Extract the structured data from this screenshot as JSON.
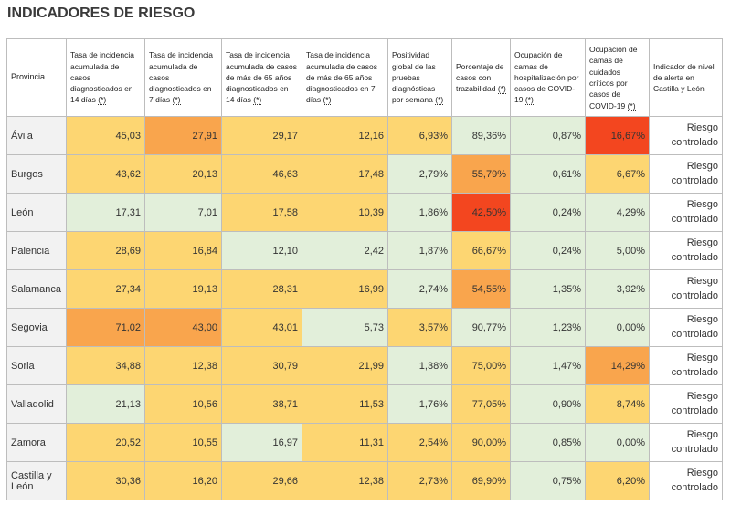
{
  "title": "INDICADORES DE RIESGO",
  "table": {
    "headers": [
      {
        "text": "Provincia"
      },
      {
        "text": "Tasa de incidencia acumulada de casos diagnosticados en 14 días",
        "note": "(*)"
      },
      {
        "text": "Tasa de incidencia acumulada de casos diagnosticados en 7 días",
        "note": "(*)"
      },
      {
        "text": "Tasa de incidencia acumulada de casos de más de 65 años diagnosticados en 14 días",
        "note": "(*)"
      },
      {
        "text": "Tasa de incidencia acumulada de casos de más de 65 años diagnosticados en 7 días",
        "note": "(*)"
      },
      {
        "text": "Positividad global de las pruebas diagnósticas por semana",
        "note": "(*)"
      },
      {
        "text": "Porcentaje de casos con trazabilidad",
        "note": "(*)"
      },
      {
        "text": "Ocupación de camas de hospitalización por casos de COVID-19",
        "note": "(*)"
      },
      {
        "text": "Ocupación de camas de cuidados críticos por casos de COVID-19",
        "note": "(*)"
      },
      {
        "text": "Indicador de nivel de alerta en Castilla y León"
      }
    ],
    "rows": [
      {
        "provincia": "Ávila",
        "values": [
          "45,03",
          "27,91",
          "29,17",
          "12,16",
          "6,93%",
          "89,36%",
          "0,87%",
          "16,67%"
        ],
        "colors": [
          "#fdd672",
          "#f9a54d",
          "#fdd672",
          "#fdd672",
          "#fdd672",
          "#e2efda",
          "#e2efda",
          "#f3461f"
        ],
        "indicator": "Riesgo controlado"
      },
      {
        "provincia": "Burgos",
        "values": [
          "43,62",
          "20,13",
          "46,63",
          "17,48",
          "2,79%",
          "55,79%",
          "0,61%",
          "6,67%"
        ],
        "colors": [
          "#fdd672",
          "#fdd672",
          "#fdd672",
          "#fdd672",
          "#e2efda",
          "#f9a54d",
          "#e2efda",
          "#fdd672"
        ],
        "indicator": "Riesgo controlado"
      },
      {
        "provincia": "León",
        "values": [
          "17,31",
          "7,01",
          "17,58",
          "10,39",
          "1,86%",
          "42,50%",
          "0,24%",
          "4,29%"
        ],
        "colors": [
          "#e2efda",
          "#e2efda",
          "#fdd672",
          "#fdd672",
          "#e2efda",
          "#f3461f",
          "#e2efda",
          "#e2efda"
        ],
        "indicator": "Riesgo controlado"
      },
      {
        "provincia": "Palencia",
        "values": [
          "28,69",
          "16,84",
          "12,10",
          "2,42",
          "1,87%",
          "66,67%",
          "0,24%",
          "5,00%"
        ],
        "colors": [
          "#fdd672",
          "#fdd672",
          "#e2efda",
          "#e2efda",
          "#e2efda",
          "#fdd672",
          "#e2efda",
          "#e2efda"
        ],
        "indicator": "Riesgo controlado"
      },
      {
        "provincia": "Salamanca",
        "values": [
          "27,34",
          "19,13",
          "28,31",
          "16,99",
          "2,74%",
          "54,55%",
          "1,35%",
          "3,92%"
        ],
        "colors": [
          "#fdd672",
          "#fdd672",
          "#fdd672",
          "#fdd672",
          "#e2efda",
          "#f9a54d",
          "#e2efda",
          "#e2efda"
        ],
        "indicator": "Riesgo controlado"
      },
      {
        "provincia": "Segovia",
        "values": [
          "71,02",
          "43,00",
          "43,01",
          "5,73",
          "3,57%",
          "90,77%",
          "1,23%",
          "0,00%"
        ],
        "colors": [
          "#f9a54d",
          "#f9a54d",
          "#fdd672",
          "#e2efda",
          "#fdd672",
          "#e2efda",
          "#e2efda",
          "#e2efda"
        ],
        "indicator": "Riesgo controlado"
      },
      {
        "provincia": "Soria",
        "values": [
          "34,88",
          "12,38",
          "30,79",
          "21,99",
          "1,38%",
          "75,00%",
          "1,47%",
          "14,29%"
        ],
        "colors": [
          "#fdd672",
          "#fdd672",
          "#fdd672",
          "#fdd672",
          "#e2efda",
          "#fdd672",
          "#e2efda",
          "#f9a54d"
        ],
        "indicator": "Riesgo controlado"
      },
      {
        "provincia": "Valladolid",
        "values": [
          "21,13",
          "10,56",
          "38,71",
          "11,53",
          "1,76%",
          "77,05%",
          "0,90%",
          "8,74%"
        ],
        "colors": [
          "#e2efda",
          "#fdd672",
          "#fdd672",
          "#fdd672",
          "#e2efda",
          "#fdd672",
          "#e2efda",
          "#fdd672"
        ],
        "indicator": "Riesgo controlado"
      },
      {
        "provincia": "Zamora",
        "values": [
          "20,52",
          "10,55",
          "16,97",
          "11,31",
          "2,54%",
          "90,00%",
          "0,85%",
          "0,00%"
        ],
        "colors": [
          "#fdd672",
          "#fdd672",
          "#e2efda",
          "#fdd672",
          "#fdd672",
          "#fdd672",
          "#e2efda",
          "#e2efda"
        ],
        "indicator": "Riesgo controlado"
      },
      {
        "provincia": "Castilla y León",
        "values": [
          "30,36",
          "16,20",
          "29,66",
          "12,38",
          "2,73%",
          "69,90%",
          "0,75%",
          "6,20%"
        ],
        "colors": [
          "#fdd672",
          "#fdd672",
          "#fdd672",
          "#fdd672",
          "#fdd672",
          "#fdd672",
          "#e2efda",
          "#fdd672"
        ],
        "indicator": "Riesgo controlado"
      }
    ]
  }
}
